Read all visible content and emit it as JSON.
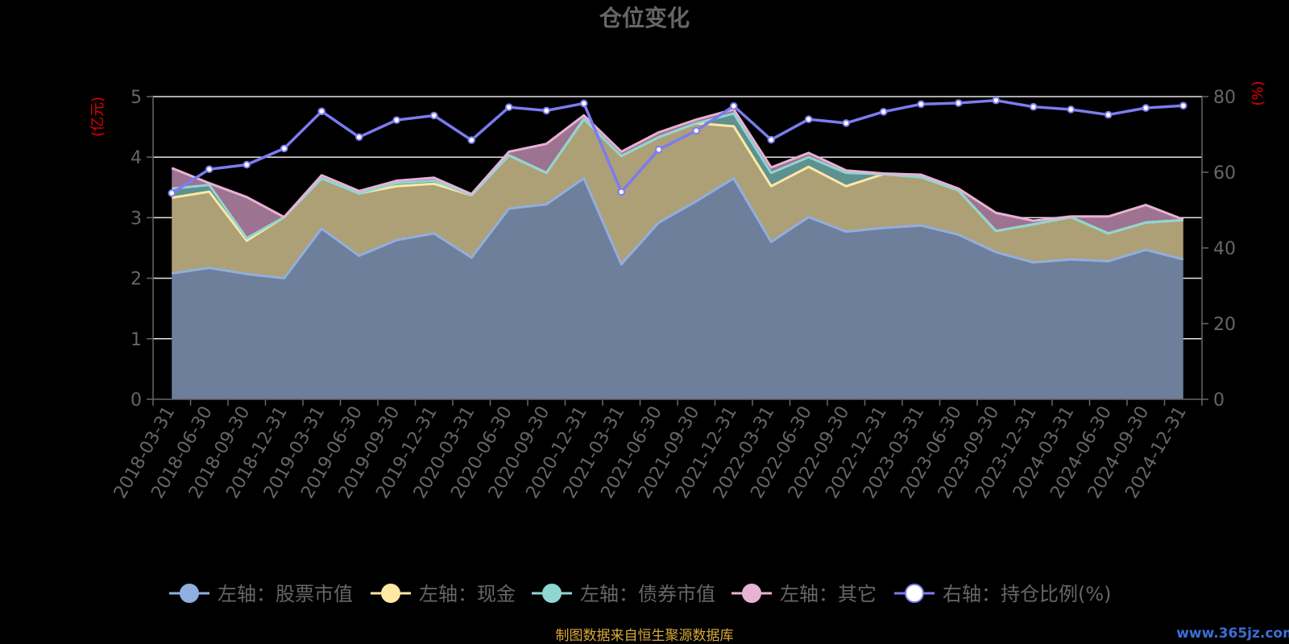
{
  "colors": {
    "stock": "#91aee0",
    "stock_fill": "#6d7f9b",
    "cash": "#fde8a4",
    "cash_fill": "#ada076",
    "bond": "#8fd6d3",
    "bond_fill": "#5e9190",
    "other": "#e8b2d4",
    "other_fill": "#9c7390",
    "ratio": "#7b7cf0"
  },
  "chart_data": {
    "type": "area",
    "title": "仓位变化",
    "left_axis_unit": "(亿元)",
    "right_axis_unit": "(%)",
    "ylim_left": [
      0,
      5
    ],
    "ylim_right": [
      0,
      80
    ],
    "left_ticks": [
      "0",
      "1",
      "2",
      "3",
      "4",
      "5"
    ],
    "right_ticks": [
      "0",
      "20",
      "40",
      "60",
      "80"
    ],
    "categories": [
      "2018-03-31",
      "2018-06-30",
      "2018-09-30",
      "2018-12-31",
      "2019-03-31",
      "2019-06-30",
      "2019-09-30",
      "2019-12-31",
      "2020-03-31",
      "2020-06-30",
      "2020-09-30",
      "2020-12-31",
      "2021-03-31",
      "2021-06-30",
      "2021-09-30",
      "2021-12-31",
      "2022-03-31",
      "2022-06-30",
      "2022-09-30",
      "2022-12-31",
      "2023-03-31",
      "2023-06-30",
      "2023-09-30",
      "2023-12-31",
      "2024-03-31",
      "2024-06-30",
      "2024-09-30",
      "2024-12-31"
    ],
    "stacked": true,
    "series": [
      {
        "name": "左轴：股票市值",
        "axis": "left",
        "values": [
          2.08,
          2.17,
          2.07,
          2.0,
          2.82,
          2.37,
          2.63,
          2.74,
          2.34,
          3.15,
          3.22,
          3.65,
          2.23,
          2.92,
          3.27,
          3.65,
          2.6,
          3.01,
          2.77,
          2.83,
          2.87,
          2.72,
          2.43,
          2.26,
          2.31,
          2.28,
          2.47,
          2.31
        ]
      },
      {
        "name": "左轴：现金",
        "axis": "left",
        "values": [
          1.25,
          1.26,
          0.55,
          1.01,
          0.83,
          1.03,
          0.89,
          0.82,
          1.03,
          0.88,
          0.52,
          0.98,
          1.79,
          1.41,
          1.29,
          0.86,
          0.92,
          0.83,
          0.75,
          0.89,
          0.8,
          0.73,
          0.35,
          0.63,
          0.7,
          0.46,
          0.45,
          0.65
        ]
      },
      {
        "name": "左轴：债券市值",
        "axis": "left",
        "values": [
          0.15,
          0.11,
          0.04,
          0.0,
          0.0,
          0.0,
          0.05,
          0.05,
          0.0,
          0.0,
          0.0,
          0.0,
          0.0,
          0.0,
          0.0,
          0.21,
          0.22,
          0.16,
          0.22,
          0.0,
          0.0,
          0.0,
          0.0,
          0.0,
          0.0,
          0.0,
          0.0,
          0.0
        ]
      },
      {
        "name": "左轴：其它",
        "axis": "left",
        "values": [
          0.34,
          0.03,
          0.68,
          0.0,
          0.05,
          0.04,
          0.04,
          0.05,
          0.02,
          0.06,
          0.48,
          0.06,
          0.07,
          0.08,
          0.06,
          0.07,
          0.09,
          0.07,
          0.04,
          0.01,
          0.04,
          0.03,
          0.3,
          0.06,
          0.01,
          0.28,
          0.29,
          0.01
        ]
      },
      {
        "name": "右轴：持仓比例(%)",
        "axis": "right",
        "values": [
          54.5,
          60.8,
          62.0,
          66.3,
          76.1,
          69.3,
          73.8,
          75.0,
          68.5,
          77.2,
          76.3,
          78.2,
          54.8,
          66.0,
          71.0,
          77.5,
          68.6,
          74.0,
          73.0,
          76.0,
          78.0,
          78.3,
          79.0,
          77.3,
          76.6,
          75.2,
          77.0,
          77.6
        ]
      }
    ],
    "grid": true,
    "legend_position": "bottom"
  },
  "footer": {
    "source": "制图数据来自恒生聚源数据库",
    "watermark": "www.365jz.com"
  }
}
